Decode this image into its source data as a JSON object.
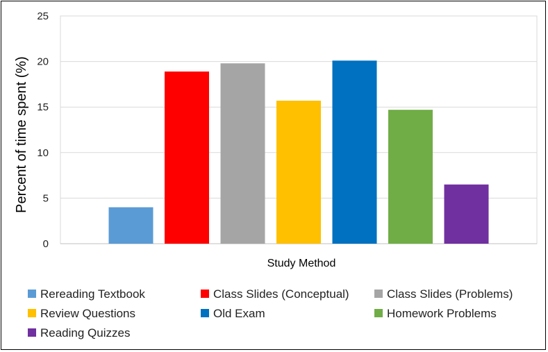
{
  "chart_data": {
    "type": "bar",
    "title": "",
    "xlabel": "Study Method",
    "ylabel": "Percent of time spent (%)",
    "ylim": [
      0,
      25
    ],
    "yticks": [
      0,
      5,
      10,
      15,
      20,
      25
    ],
    "grid": true,
    "legend_position": "bottom",
    "categories": [
      "Rereading Textbook",
      "Class Slides (Conceptual)",
      "Class Slides (Problems)",
      "Review Questions",
      "Old Exam",
      "Homework Problems",
      "Reading Quizzes"
    ],
    "values": [
      4.0,
      18.9,
      19.8,
      15.7,
      20.1,
      14.7,
      6.5
    ],
    "colors": [
      "#5b9bd5",
      "#ff0000",
      "#a5a5a5",
      "#ffc000",
      "#0070c0",
      "#70ad47",
      "#7030a0"
    ]
  }
}
